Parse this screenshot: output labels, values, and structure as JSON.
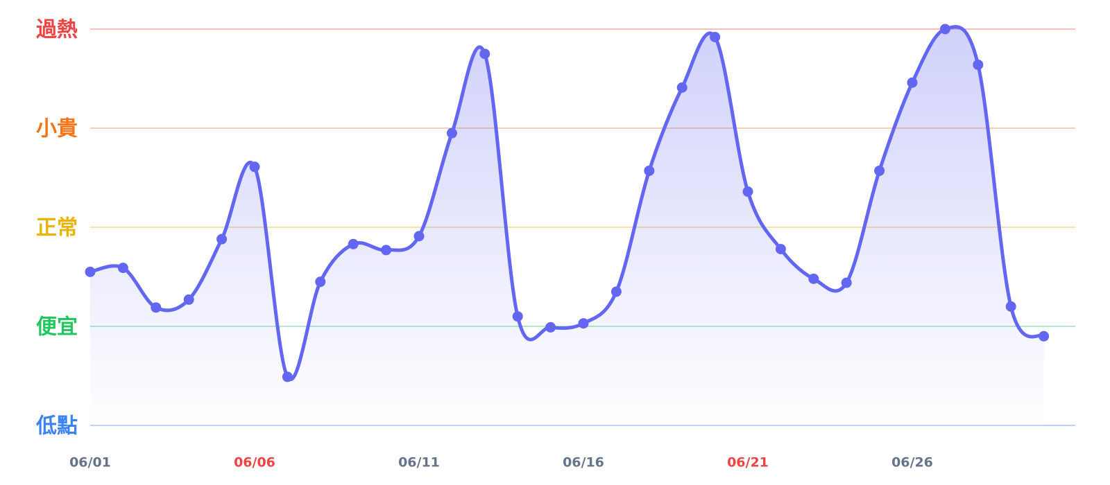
{
  "chart_data": {
    "type": "line",
    "categories": [
      "06/01",
      null,
      null,
      null,
      null,
      "06/06",
      null,
      null,
      null,
      null,
      "06/11",
      null,
      null,
      null,
      null,
      "06/16",
      null,
      null,
      null,
      null,
      "06/21",
      null,
      null,
      null,
      null,
      "06/26",
      null,
      null,
      null,
      null
    ],
    "category_colors": [
      "#64748b",
      null,
      null,
      null,
      null,
      "#ef4444",
      null,
      null,
      null,
      null,
      "#64748b",
      null,
      null,
      null,
      null,
      "#64748b",
      null,
      null,
      null,
      null,
      "#ef4444",
      null,
      null,
      null,
      null,
      "#64748b",
      null,
      null,
      null,
      null
    ],
    "values": [
      1.55,
      1.59,
      1.19,
      1.27,
      1.88,
      2.61,
      0.49,
      1.45,
      1.83,
      1.77,
      1.91,
      2.95,
      3.75,
      1.1,
      0.99,
      1.03,
      1.35,
      2.57,
      3.41,
      3.92,
      2.36,
      1.78,
      1.48,
      1.44,
      2.57,
      3.46,
      4.0,
      3.64,
      1.2,
      0.9
    ],
    "color": "#6366f1",
    "ylim": [
      0,
      4
    ],
    "yticks": [
      {
        "value": 0,
        "label": "低點"
      },
      {
        "value": 1,
        "label": "便宜"
      },
      {
        "value": 2,
        "label": "正常"
      },
      {
        "value": 3,
        "label": "小貴"
      },
      {
        "value": 4,
        "label": "過熱"
      }
    ],
    "ytick_colors": [
      "#3b82f6",
      "#22c55e",
      "#eab308",
      "#f97316",
      "#ef4444"
    ],
    "grid": true
  }
}
